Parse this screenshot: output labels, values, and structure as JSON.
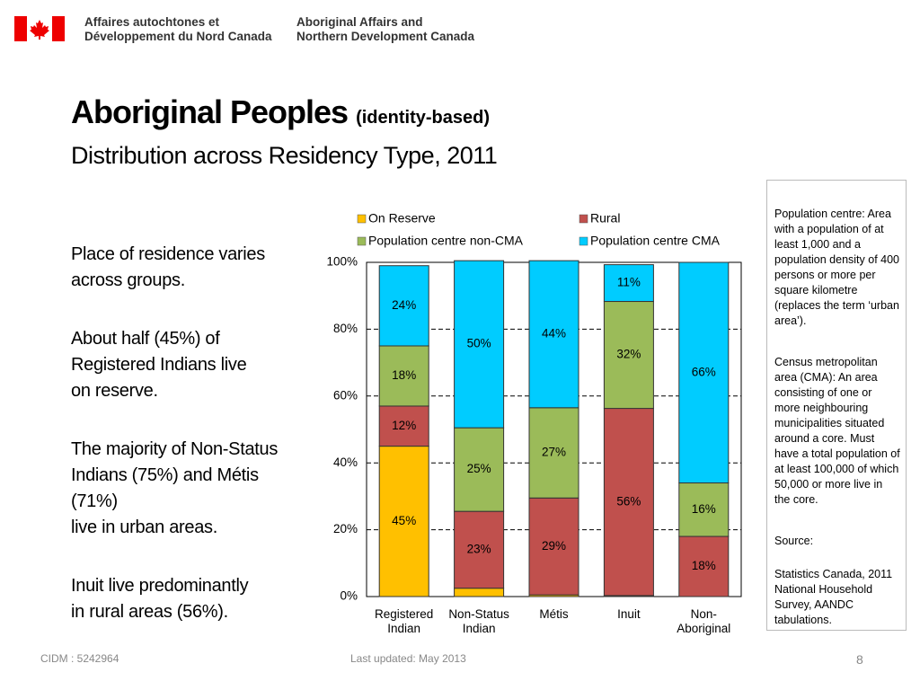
{
  "header": {
    "french": "Affaires autochtones et\nDéveloppement du Nord Canada",
    "english": "Aboriginal Affairs and\nNorthern Development Canada"
  },
  "title": "Aboriginal Peoples",
  "title_note": "(identity-based)",
  "subtitle": "Distribution across Residency Type, 2011",
  "bullets": [
    "Place of residence varies\nacross groups.",
    "About half (45%) of\nRegistered Indians live\non reserve.",
    "The majority of Non-Status\nIndians (75%) and Métis\n(71%)\nlive in urban areas.",
    "Inuit live predominantly\nin rural areas (56%)."
  ],
  "sidebar": [
    "Population centre: Area with a population of at least 1,000 and a population density of 400 persons or more per square kilometre (replaces the term ‘urban area’).",
    "Census metropolitan area (CMA): An area consisting of one or more neighbouring municipalities situated around a core. Must have a total population of at least 100,000 of which 50,000 or more live in the core.",
    "Source:",
    "Statistics Canada, 2011 National Household Survey, AANDC tabulations."
  ],
  "footer": {
    "left": "CIDM : 5242964",
    "center": "Last updated: May 2013",
    "page": "8"
  },
  "chart_data": {
    "type": "stacked-bar",
    "categories": [
      "Registered\nIndian",
      "Non-Status\nIndian",
      "Métis",
      "Inuit",
      "Non-\nAboriginal"
    ],
    "series": [
      {
        "name": "On Reserve",
        "color": "#ffc000",
        "values": [
          45,
          2.5,
          0.5,
          0.3,
          0
        ],
        "value_labels": [
          "45%",
          null,
          null,
          null,
          null
        ]
      },
      {
        "name": "Rural",
        "color": "#c0504d",
        "values": [
          12,
          23,
          29,
          56,
          18
        ],
        "value_labels": [
          "12%",
          "23%",
          "29%",
          "56%",
          "18%"
        ]
      },
      {
        "name": "Population centre non-CMA",
        "color": "#9bbb59",
        "values": [
          18,
          25,
          27,
          32,
          16
        ],
        "value_labels": [
          "18%",
          "25%",
          "27%",
          "32%",
          "16%"
        ]
      },
      {
        "name": "Population centre CMA",
        "color": "#00ccff",
        "values": [
          24,
          50,
          44,
          11,
          66
        ],
        "value_labels": [
          "24%",
          "50%",
          "44%",
          "11%",
          "66%"
        ]
      }
    ],
    "ylim": [
      0,
      100
    ],
    "yticks": [
      {
        "value": 0,
        "label": "0%"
      },
      {
        "value": 20,
        "label": "20%"
      },
      {
        "value": 40,
        "label": "40%"
      },
      {
        "value": 60,
        "label": "60%"
      },
      {
        "value": 80,
        "label": "80%"
      },
      {
        "value": 100,
        "label": "100%"
      }
    ],
    "grid": true
  }
}
